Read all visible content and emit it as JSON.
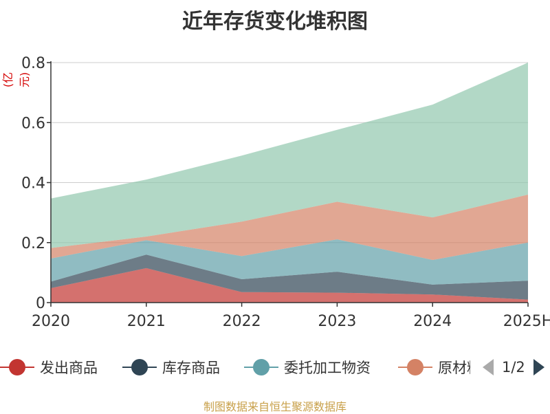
{
  "chart_data": {
    "type": "area",
    "stacked": true,
    "title": "近年存货变化堆积图",
    "ylabel": "(亿元)",
    "categories": [
      "2020",
      "2021",
      "2022",
      "2023",
      "2024",
      "2025H"
    ],
    "ylim": [
      0,
      0.8
    ],
    "yticks": [
      "0",
      "0.2",
      "0.4",
      "0.6",
      "0.8"
    ],
    "grid": true,
    "legend_position": "bottom",
    "series": [
      {
        "name": "发出商品",
        "color": "#c23531",
        "values": [
          0.048,
          0.115,
          0.035,
          0.033,
          0.027,
          0.01
        ]
      },
      {
        "name": "库存商品",
        "color": "#2f4554",
        "values": [
          0.022,
          0.045,
          0.043,
          0.07,
          0.033,
          0.063
        ]
      },
      {
        "name": "委托加工物资",
        "color": "#61a0a8",
        "values": [
          0.077,
          0.048,
          0.077,
          0.108,
          0.082,
          0.127
        ]
      },
      {
        "name": "原材料",
        "color": "#d48265",
        "values": [
          0.035,
          0.012,
          0.115,
          0.125,
          0.142,
          0.16
        ]
      },
      {
        "name": "",
        "color": "#91c7ae",
        "values": [
          0.165,
          0.19,
          0.22,
          0.24,
          0.376,
          0.44
        ]
      }
    ]
  },
  "legend": {
    "page_label": "1/2"
  },
  "footer": "制图数据来自恒生聚源数据库"
}
